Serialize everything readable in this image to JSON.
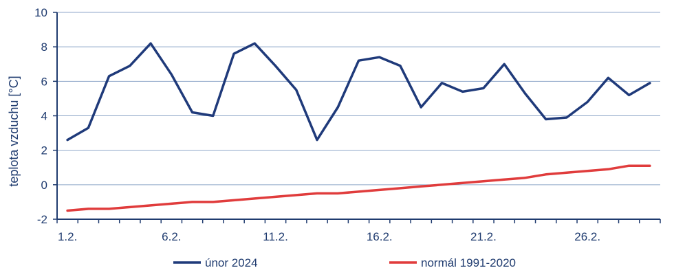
{
  "chart_data": {
    "type": "line",
    "title": "",
    "xlabel": "",
    "ylabel": "teplota vzduchu [°C]",
    "ylim": [
      -2,
      10
    ],
    "yticks": [
      -2,
      0,
      2,
      4,
      6,
      8,
      10
    ],
    "grid": true,
    "legend_position": "bottom",
    "categories": [
      "1.2.",
      "2.2.",
      "3.2.",
      "4.2.",
      "5.2.",
      "6.2.",
      "7.2.",
      "8.2.",
      "9.2.",
      "10.2.",
      "11.2.",
      "12.2.",
      "13.2.",
      "14.2.",
      "15.2.",
      "16.2.",
      "17.2.",
      "18.2.",
      "19.2.",
      "20.2.",
      "21.2.",
      "22.2.",
      "23.2.",
      "24.2.",
      "25.2.",
      "26.2.",
      "27.2.",
      "28.2.",
      "29.2."
    ],
    "xtick_labels": [
      "1.2.",
      "6.2.",
      "11.2.",
      "16.2.",
      "21.2.",
      "26.2."
    ],
    "series": [
      {
        "name": "únor 2024",
        "color": "#1f3a7a",
        "values": [
          2.6,
          3.3,
          6.3,
          6.9,
          8.2,
          6.4,
          4.2,
          4.0,
          7.6,
          8.2,
          6.9,
          5.5,
          2.6,
          4.5,
          7.2,
          7.4,
          6.9,
          4.5,
          5.9,
          5.4,
          5.6,
          7.0,
          5.3,
          3.8,
          3.9,
          4.8,
          6.2,
          5.2,
          5.9
        ]
      },
      {
        "name": "normál 1991-2020",
        "color": "#e03c3c",
        "values": [
          -1.5,
          -1.4,
          -1.4,
          -1.3,
          -1.2,
          -1.1,
          -1.0,
          -1.0,
          -0.9,
          -0.8,
          -0.7,
          -0.6,
          -0.5,
          -0.5,
          -0.4,
          -0.3,
          -0.2,
          -0.1,
          0.0,
          0.1,
          0.2,
          0.3,
          0.4,
          0.6,
          0.7,
          0.8,
          0.9,
          1.1,
          1.1
        ]
      }
    ]
  }
}
